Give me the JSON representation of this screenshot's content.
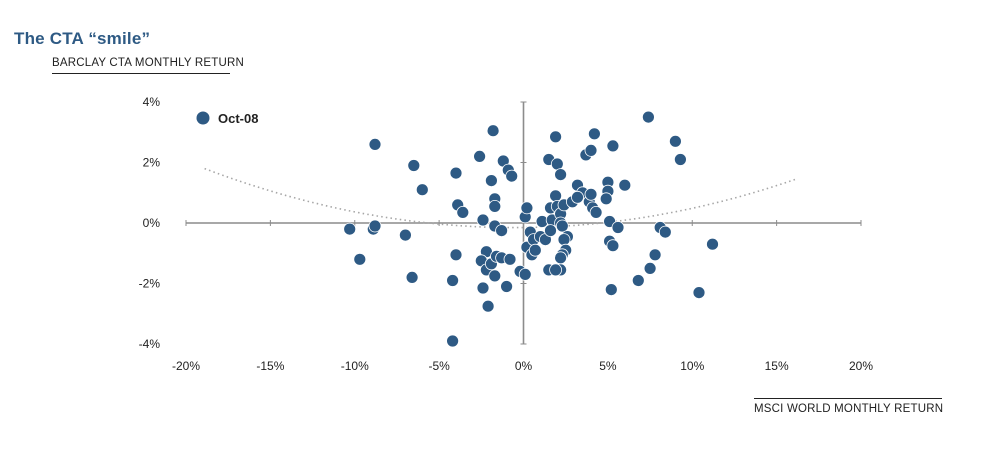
{
  "title": "The CTA “smile”",
  "chart_data": {
    "type": "scatter",
    "ylabel": "BARCLAY CTA MONTHLY RETURN",
    "xlabel": "MSCI WORLD MONTHLY RETURN",
    "xlim": [
      -20,
      20
    ],
    "ylim": [
      -4,
      4
    ],
    "x_ticks": [
      "-20%",
      "-15%",
      "-10%",
      "-5%",
      "0%",
      "5%",
      "10%",
      "15%",
      "20%"
    ],
    "y_ticks": [
      "4%",
      "2%",
      "0%",
      "-2%",
      "-4%"
    ],
    "point_color": "#2e5a84",
    "curve_color": "#a6a6a6",
    "legend": {
      "label": "Oct-08",
      "position": "top-left"
    },
    "fit_curve": {
      "type": "quadratic",
      "a": 0.00577,
      "b": 0.0059,
      "c": -0.15,
      "x_range": [
        -18.9,
        16.2
      ]
    },
    "points": [
      [
        -8.8,
        2.6
      ],
      [
        -6.5,
        1.9
      ],
      [
        -6.0,
        1.1
      ],
      [
        -10.3,
        -0.2
      ],
      [
        -9.7,
        -1.2
      ],
      [
        -8.9,
        -0.2
      ],
      [
        -8.8,
        -0.1
      ],
      [
        -7.0,
        -0.4
      ],
      [
        -6.6,
        -1.8
      ],
      [
        -3.9,
        0.6
      ],
      [
        -3.6,
        0.35
      ],
      [
        -4.0,
        1.65
      ],
      [
        -4.0,
        -1.05
      ],
      [
        -4.2,
        -1.9
      ],
      [
        -4.2,
        -3.9
      ],
      [
        -2.6,
        2.2
      ],
      [
        -1.8,
        3.05
      ],
      [
        -1.9,
        1.4
      ],
      [
        -1.7,
        0.8
      ],
      [
        -1.7,
        0.55
      ],
      [
        -2.4,
        0.1
      ],
      [
        -1.7,
        -0.1
      ],
      [
        -1.3,
        -0.25
      ],
      [
        -2.2,
        -0.95
      ],
      [
        -2.5,
        -1.25
      ],
      [
        -2.2,
        -1.55
      ],
      [
        -1.9,
        -1.35
      ],
      [
        -1.6,
        -1.1
      ],
      [
        -1.7,
        -1.75
      ],
      [
        -2.4,
        -2.15
      ],
      [
        -2.1,
        -2.75
      ],
      [
        -1.2,
        2.05
      ],
      [
        -0.9,
        1.75
      ],
      [
        -0.7,
        1.55
      ],
      [
        -1.3,
        -1.15
      ],
      [
        -0.8,
        -1.2
      ],
      [
        -1.0,
        -2.1
      ],
      [
        -0.2,
        -1.6
      ],
      [
        0.1,
        -1.7
      ],
      [
        0.1,
        0.2
      ],
      [
        0.2,
        0.5
      ],
      [
        0.2,
        -0.8
      ],
      [
        0.4,
        -0.3
      ],
      [
        0.6,
        -0.55
      ],
      [
        0.5,
        -1.05
      ],
      [
        0.7,
        -0.9
      ],
      [
        1.1,
        0.05
      ],
      [
        1.0,
        -0.45
      ],
      [
        1.3,
        -0.55
      ],
      [
        1.6,
        0.5
      ],
      [
        1.7,
        0.1
      ],
      [
        1.6,
        -0.25
      ],
      [
        1.5,
        -1.55
      ],
      [
        1.9,
        0.9
      ],
      [
        2.0,
        0.55
      ],
      [
        2.2,
        0.3
      ],
      [
        2.2,
        0.0
      ],
      [
        2.3,
        -0.1
      ],
      [
        2.4,
        0.6
      ],
      [
        2.6,
        -0.45
      ],
      [
        2.4,
        -0.55
      ],
      [
        2.5,
        -0.9
      ],
      [
        2.3,
        -1.05
      ],
      [
        2.2,
        -1.15
      ],
      [
        2.2,
        -1.55
      ],
      [
        1.9,
        -1.55
      ],
      [
        1.5,
        2.1
      ],
      [
        2.0,
        1.95
      ],
      [
        2.2,
        1.6
      ],
      [
        1.9,
        2.85
      ],
      [
        2.9,
        0.7
      ],
      [
        3.2,
        1.25
      ],
      [
        3.5,
        1.0
      ],
      [
        3.9,
        0.7
      ],
      [
        4.0,
        0.95
      ],
      [
        4.1,
        0.5
      ],
      [
        4.3,
        0.35
      ],
      [
        3.7,
        2.25
      ],
      [
        4.0,
        2.4
      ],
      [
        4.2,
        2.95
      ],
      [
        5.3,
        2.55
      ],
      [
        5.0,
        1.35
      ],
      [
        5.0,
        1.05
      ],
      [
        4.9,
        0.8
      ],
      [
        5.1,
        0.05
      ],
      [
        5.6,
        -0.15
      ],
      [
        5.1,
        -0.6
      ],
      [
        5.3,
        -0.75
      ],
      [
        5.2,
        -2.2
      ],
      [
        6.0,
        1.25
      ],
      [
        6.8,
        -1.9
      ],
      [
        7.5,
        -1.5
      ],
      [
        7.8,
        -1.05
      ],
      [
        8.1,
        -0.15
      ],
      [
        8.4,
        -0.3
      ],
      [
        7.4,
        3.5
      ],
      [
        9.0,
        2.7
      ],
      [
        9.3,
        2.1
      ],
      [
        10.4,
        -2.3
      ],
      [
        11.2,
        -0.7
      ],
      [
        3.2,
        0.85
      ]
    ]
  }
}
